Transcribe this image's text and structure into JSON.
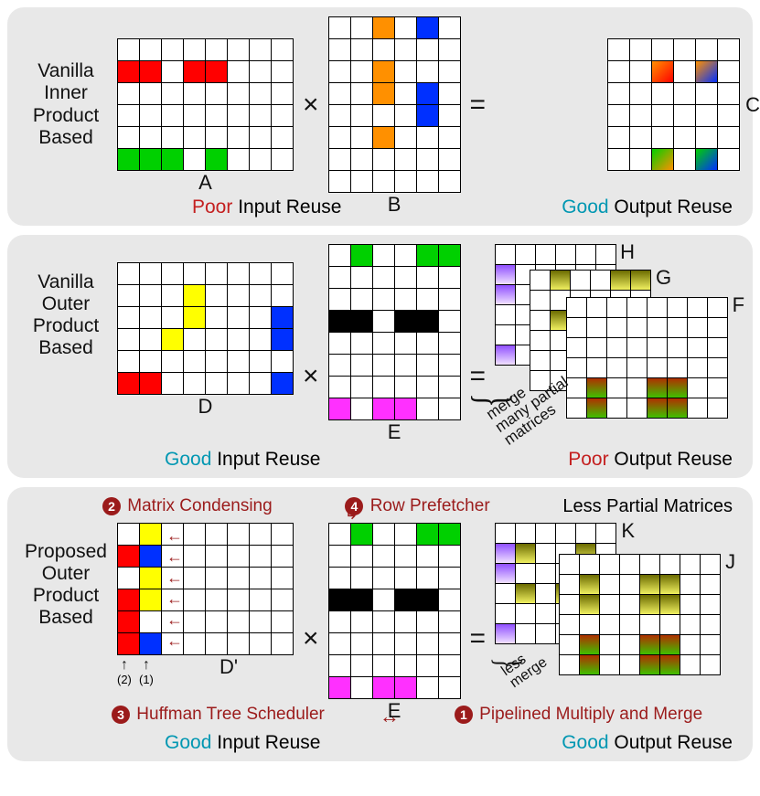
{
  "colors": {
    "red": "#ff0000",
    "green": "#00d000",
    "orange": "#ff9000",
    "blue": "#0030ff",
    "yellow": "#ffff00",
    "black": "#000000",
    "magenta": "#ff30ff",
    "white": "#ffffff",
    "grad_or_rd": "linear-gradient(135deg,#ff9000,#ff0000)",
    "grad_or_bl": "linear-gradient(135deg,#ff9000,#0030ff)",
    "grad_gr_or": "linear-gradient(135deg,#00d000,#ff9000)",
    "grad_gr_bl": "linear-gradient(135deg,#00d000,#0030ff)",
    "grad_pu": "linear-gradient(180deg,#9050ff,#f0e0ff)",
    "grad_ol": "linear-gradient(180deg,#6b6b00,#f0f060)",
    "grad_rd_gr": "linear-gradient(180deg,#b03000,#40c000)"
  },
  "panel1": {
    "title": [
      "Vanilla",
      "Inner",
      "Product",
      "Based"
    ],
    "A": {
      "rows": 6,
      "cols": 8,
      "label": "A",
      "fills": [
        [
          1,
          0,
          "red"
        ],
        [
          1,
          1,
          "red"
        ],
        [
          1,
          3,
          "red"
        ],
        [
          1,
          4,
          "red"
        ],
        [
          5,
          0,
          "green"
        ],
        [
          5,
          1,
          "green"
        ],
        [
          5,
          2,
          "green"
        ],
        [
          5,
          4,
          "green"
        ]
      ]
    },
    "B": {
      "rows": 8,
      "cols": 6,
      "label": "B",
      "fills": [
        [
          0,
          2,
          "orange"
        ],
        [
          0,
          4,
          "blue"
        ],
        [
          2,
          2,
          "orange"
        ],
        [
          3,
          2,
          "orange"
        ],
        [
          3,
          4,
          "blue"
        ],
        [
          4,
          4,
          "blue"
        ],
        [
          5,
          2,
          "orange"
        ]
      ]
    },
    "C": {
      "rows": 6,
      "cols": 6,
      "label": "C",
      "fills": [
        [
          1,
          2,
          "grad_or_rd"
        ],
        [
          1,
          4,
          "grad_or_bl"
        ],
        [
          5,
          2,
          "grad_gr_or"
        ],
        [
          5,
          4,
          "grad_gr_bl"
        ]
      ]
    },
    "cap_left_poor": "Poor",
    "cap_left_rest": " Input Reuse",
    "cap_right_good": "Good",
    "cap_right_rest": " Output Reuse"
  },
  "panel2": {
    "title": [
      "Vanilla",
      "Outer",
      "Product",
      "Based"
    ],
    "D": {
      "rows": 6,
      "cols": 8,
      "label": "D",
      "fills": [
        [
          1,
          3,
          "yellow"
        ],
        [
          2,
          3,
          "yellow"
        ],
        [
          2,
          7,
          "blue"
        ],
        [
          3,
          2,
          "yellow"
        ],
        [
          3,
          7,
          "blue"
        ],
        [
          5,
          0,
          "red"
        ],
        [
          5,
          1,
          "red"
        ],
        [
          5,
          7,
          "blue"
        ]
      ]
    },
    "E": {
      "rows": 8,
      "cols": 6,
      "label": "E",
      "fills": [
        [
          0,
          1,
          "green"
        ],
        [
          0,
          4,
          "green"
        ],
        [
          0,
          5,
          "green"
        ],
        [
          3,
          0,
          "black"
        ],
        [
          3,
          1,
          "black"
        ],
        [
          3,
          3,
          "black"
        ],
        [
          3,
          4,
          "black"
        ],
        [
          7,
          0,
          "magenta"
        ],
        [
          7,
          2,
          "magenta"
        ],
        [
          7,
          3,
          "magenta"
        ]
      ]
    },
    "H": {
      "rows": 6,
      "cols": 6,
      "label": "H",
      "fills": [
        [
          1,
          0,
          "grad_pu"
        ],
        [
          2,
          0,
          "grad_pu"
        ],
        [
          5,
          0,
          "grad_pu"
        ]
      ]
    },
    "G": {
      "rows": 6,
      "cols": 6,
      "label": "G",
      "fills": [
        [
          0,
          1,
          "grad_ol"
        ],
        [
          0,
          4,
          "grad_ol"
        ],
        [
          0,
          5,
          "grad_ol"
        ],
        [
          2,
          1,
          "grad_ol"
        ],
        [
          2,
          4,
          "grad_ol"
        ]
      ]
    },
    "F": {
      "rows": 6,
      "cols": 8,
      "label": "F",
      "fills": [
        [
          4,
          1,
          "grad_rd_gr"
        ],
        [
          4,
          4,
          "grad_rd_gr"
        ],
        [
          4,
          5,
          "grad_rd_gr"
        ],
        [
          5,
          1,
          "grad_rd_gr"
        ],
        [
          5,
          4,
          "grad_rd_gr"
        ],
        [
          5,
          5,
          "grad_rd_gr"
        ]
      ]
    },
    "merge_text": "merge\nmany partial\nmatrices",
    "cap_left_good": "Good",
    "cap_left_rest": " Input Reuse",
    "cap_right_poor": "Poor",
    "cap_right_rest": " Output Reuse"
  },
  "panel3": {
    "title": [
      "Proposed",
      "Outer",
      "Product",
      "Based"
    ],
    "anno2": "Matrix Condensing",
    "anno4": "Row Prefetcher",
    "anno3": "Huffman Tree Scheduler",
    "anno1": "Pipelined Multiply and Merge",
    "less_partial": "Less Partial Matrices",
    "Dp": {
      "rows": 6,
      "cols": 8,
      "label": "D'",
      "fills": [
        [
          0,
          1,
          "yellow"
        ],
        [
          1,
          0,
          "red"
        ],
        [
          1,
          1,
          "blue"
        ],
        [
          2,
          1,
          "yellow"
        ],
        [
          3,
          0,
          "red"
        ],
        [
          3,
          1,
          "yellow"
        ],
        [
          4,
          0,
          "red"
        ],
        [
          5,
          0,
          "red"
        ],
        [
          5,
          1,
          "blue"
        ]
      ]
    },
    "E": {
      "rows": 8,
      "cols": 6,
      "label": "E",
      "fills": [
        [
          0,
          1,
          "green"
        ],
        [
          0,
          4,
          "green"
        ],
        [
          0,
          5,
          "green"
        ],
        [
          3,
          0,
          "black"
        ],
        [
          3,
          1,
          "black"
        ],
        [
          3,
          3,
          "black"
        ],
        [
          3,
          4,
          "black"
        ],
        [
          7,
          0,
          "magenta"
        ],
        [
          7,
          2,
          "magenta"
        ],
        [
          7,
          3,
          "magenta"
        ]
      ]
    },
    "K": {
      "rows": 6,
      "cols": 6,
      "label": "K",
      "fills": [
        [
          1,
          0,
          "grad_pu"
        ],
        [
          1,
          1,
          "grad_ol"
        ],
        [
          1,
          4,
          "grad_ol"
        ],
        [
          2,
          0,
          "grad_pu"
        ],
        [
          3,
          1,
          "grad_ol"
        ],
        [
          3,
          3,
          "grad_ol"
        ],
        [
          3,
          4,
          "grad_ol"
        ],
        [
          5,
          0,
          "grad_pu"
        ]
      ]
    },
    "J": {
      "rows": 6,
      "cols": 8,
      "label": "J",
      "fills": [
        [
          1,
          1,
          "grad_ol"
        ],
        [
          1,
          4,
          "grad_ol"
        ],
        [
          1,
          5,
          "grad_ol"
        ],
        [
          2,
          1,
          "grad_ol"
        ],
        [
          2,
          4,
          "grad_ol"
        ],
        [
          2,
          5,
          "grad_ol"
        ],
        [
          4,
          1,
          "grad_rd_gr"
        ],
        [
          4,
          4,
          "grad_rd_gr"
        ],
        [
          4,
          5,
          "grad_rd_gr"
        ],
        [
          5,
          1,
          "grad_rd_gr"
        ],
        [
          5,
          4,
          "grad_rd_gr"
        ],
        [
          5,
          5,
          "grad_rd_gr"
        ]
      ]
    },
    "less_merge": "less\nmerge",
    "sub12_1": "(2)",
    "sub12_2": "(1)",
    "cap_left_good": "Good",
    "cap_left_rest": " Input Reuse",
    "cap_right_good": "Good",
    "cap_right_rest": " Output Reuse"
  }
}
